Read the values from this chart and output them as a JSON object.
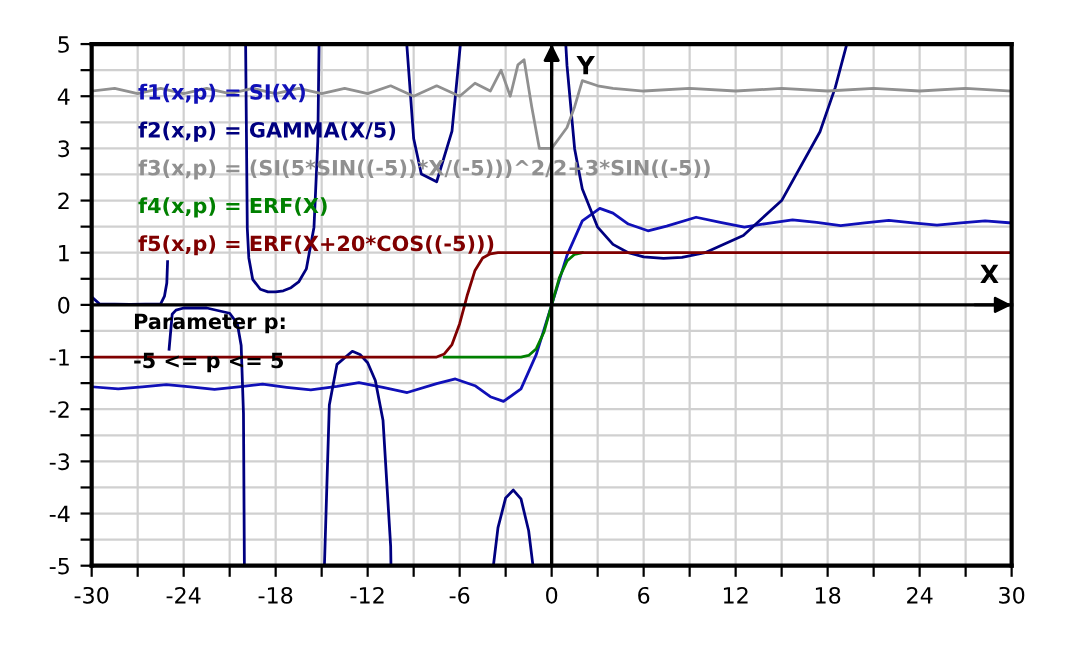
{
  "chart_data": {
    "type": "line",
    "xlim": [
      -30,
      30
    ],
    "ylim": [
      -5,
      5
    ],
    "xticks": [
      -30,
      {
        "value": -27,
        "label": null
      },
      -24,
      {
        "value": -21,
        "label": null
      },
      -18,
      {
        "value": -15,
        "label": null
      },
      -12,
      {
        "value": -9,
        "label": null
      },
      -6,
      {
        "value": -3,
        "label": null
      },
      0,
      {
        "value": 3,
        "label": null
      },
      6,
      {
        "value": 9,
        "label": null
      },
      12,
      {
        "value": 15,
        "label": null
      },
      18,
      {
        "value": 21,
        "label": null
      },
      24,
      {
        "value": 27,
        "label": null
      },
      30
    ],
    "yticks": [
      -5,
      {
        "value": -4.5,
        "label": null
      },
      -4,
      {
        "value": -3.5,
        "label": null
      },
      -3,
      {
        "value": -2.5,
        "label": null
      },
      -2,
      {
        "value": -1.5,
        "label": null
      },
      -1,
      {
        "value": -0.5,
        "label": null
      },
      0,
      {
        "value": 0.5,
        "label": null
      },
      1,
      {
        "value": 1.5,
        "label": null
      },
      2,
      {
        "value": 2.5,
        "label": null
      },
      3,
      {
        "value": 3.5,
        "label": null
      },
      4,
      {
        "value": 4.5,
        "label": null
      },
      5
    ],
    "grid": true,
    "legend": "top left",
    "marker": "none",
    "line_style": "solid",
    "xlabel": "X",
    "ylabel": "Y",
    "annotations": [
      "Parameter p:",
      "-5 <= p <= 5"
    ],
    "series": [
      {
        "name": "f1(x,p) = SI(X)",
        "color": "#1010b8",
        "x": [
          -30,
          -28.27,
          -26.7,
          -25.13,
          -23.56,
          -21.99,
          -20.42,
          -18.85,
          -17.28,
          -15.71,
          -14,
          -12.57,
          -11,
          -9.42,
          -7.5,
          -6.28,
          -5,
          -4,
          -3.14,
          -2,
          -1,
          0,
          1,
          2,
          3.14,
          4,
          5,
          6.28,
          7.5,
          9.42,
          11,
          12.57,
          14,
          15.71,
          17.28,
          18.85,
          20.42,
          21.99,
          23.56,
          25.13,
          26.7,
          28.27,
          30
        ],
        "values": [
          -1.57,
          -1.61,
          -1.57,
          -1.53,
          -1.57,
          -1.62,
          -1.57,
          -1.52,
          -1.58,
          -1.63,
          -1.56,
          -1.49,
          -1.58,
          -1.68,
          -1.51,
          -1.42,
          -1.55,
          -1.76,
          -1.85,
          -1.61,
          -0.95,
          0,
          0.95,
          1.61,
          1.85,
          1.76,
          1.55,
          1.42,
          1.51,
          1.68,
          1.58,
          1.49,
          1.56,
          1.63,
          1.58,
          1.52,
          1.57,
          1.62,
          1.57,
          1.53,
          1.57,
          1.61,
          1.57
        ]
      },
      {
        "name": "f2(x,p) = GAMMA(X/5)",
        "color": "#000080",
        "x": [
          -29.95,
          -29.5,
          -27.5,
          -25.5,
          -25.25,
          -25.1,
          -25.05,
          -25,
          -24.95,
          -24.75,
          -24.5,
          -24,
          -22.5,
          -21,
          -20.5,
          -20.25,
          -20.1,
          -20.04,
          -20,
          -19.96,
          -19.85,
          -19.75,
          -19.5,
          -19,
          -18.5,
          -18,
          -17.5,
          -17,
          -16.5,
          -16,
          -15.5,
          -15.25,
          -15.17,
          -15,
          -14.82,
          -14.5,
          -14,
          -13,
          -12.5,
          -12,
          -11.5,
          -11,
          -10.5,
          -10.48,
          -10,
          -9.45,
          -9,
          -8.5,
          -7.5,
          -6.5,
          -6,
          -5.95,
          -5,
          -3.8,
          -3.5,
          -3,
          -2.5,
          -2,
          -1.5,
          -1.22,
          0,
          0.92,
          1,
          1.5,
          2,
          3,
          4,
          5,
          6,
          7.3,
          8.5,
          10,
          12.5,
          15,
          17.5,
          18.5,
          19.25
        ],
        "values": [
          0.14,
          0.02,
          0.01,
          0.02,
          0.17,
          0.42,
          0.83,
          null,
          -0.85,
          -0.18,
          -0.1,
          -0.06,
          -0.06,
          -0.16,
          -0.36,
          -0.78,
          -2.08,
          -5.0,
          null,
          5.0,
          1.46,
          0.9,
          0.49,
          0.3,
          0.25,
          0.25,
          0.27,
          0.33,
          0.44,
          0.69,
          1.49,
          3.14,
          5.0,
          null,
          -5.0,
          -1.92,
          -1.14,
          -0.89,
          -0.95,
          -1.11,
          -1.45,
          -2.21,
          -4.63,
          -5.0,
          null,
          5.0,
          3.19,
          2.51,
          2.36,
          3.33,
          4.85,
          5.0,
          null,
          -5.0,
          -4.27,
          -3.7,
          -3.55,
          -3.72,
          -4.33,
          -5.0,
          null,
          5.0,
          4.59,
          2.99,
          2.22,
          1.49,
          1.16,
          1.0,
          0.92,
          0.89,
          0.91,
          1.0,
          1.33,
          2.0,
          3.32,
          4.17,
          5.0
        ]
      },
      {
        "name": "f3(x,p) = (SI(5*SIN((-5))*X/(-5)))^2/2+3*SIN((-5))",
        "color": "#909090",
        "x": [
          -30,
          -28.5,
          -27,
          -25.5,
          -24,
          -22.5,
          -21,
          -19.5,
          -18,
          -16.5,
          -15,
          -13.5,
          -12,
          -10.5,
          -9,
          -7.5,
          -6,
          -5,
          -4,
          -3.3,
          -2.7,
          -2.2,
          -1.8,
          -1.3,
          -0.8,
          -0.3,
          0,
          0.5,
          1,
          1.5,
          2,
          3,
          4,
          6,
          9,
          12,
          15,
          18,
          21,
          24,
          27,
          30
        ],
        "values": [
          4.1,
          4.15,
          4.05,
          4.15,
          4.05,
          4.15,
          4.05,
          4.15,
          4.05,
          4.15,
          4.05,
          4.15,
          4.05,
          4.2,
          4.0,
          4.2,
          4.0,
          4.25,
          4.1,
          4.5,
          4.0,
          4.6,
          4.7,
          3.8,
          3.0,
          3.0,
          3.0,
          3.2,
          3.4,
          3.8,
          4.3,
          4.2,
          4.15,
          4.1,
          4.15,
          4.1,
          4.15,
          4.1,
          4.15,
          4.1,
          4.15,
          4.1
        ]
      },
      {
        "name": "f4(x,p) = ERF(X)",
        "color": "#008000",
        "x": [
          -7,
          -2,
          -1.5,
          -1,
          -0.5,
          0,
          0.5,
          1,
          1.5,
          2
        ],
        "values": [
          -1,
          -1,
          -0.97,
          -0.84,
          -0.52,
          0,
          0.52,
          0.84,
          0.97,
          1
        ]
      },
      {
        "name": "f5(x,p) = ERF(X+20*COS((-5)))",
        "color": "#800000",
        "x": [
          -30,
          -7.5,
          -7,
          -6.5,
          -6,
          -5.67,
          -5.5,
          -5,
          -4.5,
          -4,
          -3.5,
          30
        ],
        "values": [
          -1,
          -1,
          -0.94,
          -0.76,
          -0.36,
          0,
          0.19,
          0.66,
          0.9,
          0.98,
          1,
          1
        ]
      }
    ]
  }
}
